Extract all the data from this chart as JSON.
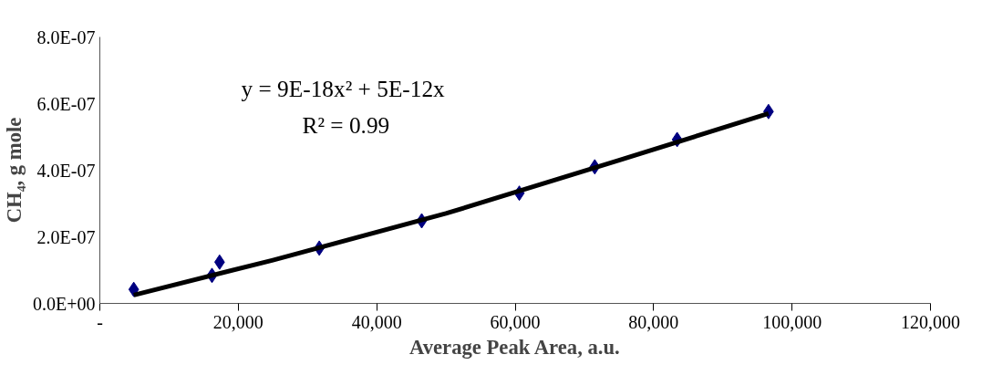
{
  "chart_data": {
    "type": "scatter",
    "xlabel": "Average Peak Area, a.u.",
    "ylabel": "CH₄, g mole",
    "annotations": [
      "y = 9E-18x² + 5E-12x",
      "R² = 0.99"
    ],
    "marker": "diamond",
    "grid": false,
    "xlim": [
      0,
      120000
    ],
    "ylim": [
      0,
      8e-07
    ],
    "xticks": [
      {
        "value": 0,
        "label": "-"
      },
      {
        "value": 20000,
        "label": "20,000"
      },
      {
        "value": 40000,
        "label": "40,000"
      },
      {
        "value": 60000,
        "label": "60,000"
      },
      {
        "value": 80000,
        "label": "80,000"
      },
      {
        "value": 100000,
        "label": "100,000"
      },
      {
        "value": 120000,
        "label": "120,000"
      }
    ],
    "yticks": [
      {
        "value": 0,
        "label": "0.0E+00"
      },
      {
        "value": 2e-07,
        "label": "2.0E-07"
      },
      {
        "value": 4e-07,
        "label": "4.0E-07"
      },
      {
        "value": 6e-07,
        "label": "6.0E-07"
      },
      {
        "value": 8e-07,
        "label": "8.0E-07"
      }
    ],
    "series": [
      {
        "color": "#000080",
        "x": [
          4900,
          16200,
          17300,
          31700,
          46500,
          60600,
          71500,
          83400,
          96600
        ],
        "values": [
          4.2e-08,
          8.4e-08,
          1.24e-07,
          1.66e-07,
          2.48e-07,
          3.31e-07,
          4.1e-07,
          4.92e-07,
          5.76e-07
        ]
      },
      {
        "type": "line",
        "color": "#000000",
        "line_style": "solid",
        "marker": "none",
        "x": [
          4900,
          25000,
          50000,
          75000,
          96600
        ],
        "values": [
          2.5e-08,
          1.3e-07,
          2.7e-07,
          4.3e-07,
          5.7e-07
        ]
      }
    ]
  }
}
